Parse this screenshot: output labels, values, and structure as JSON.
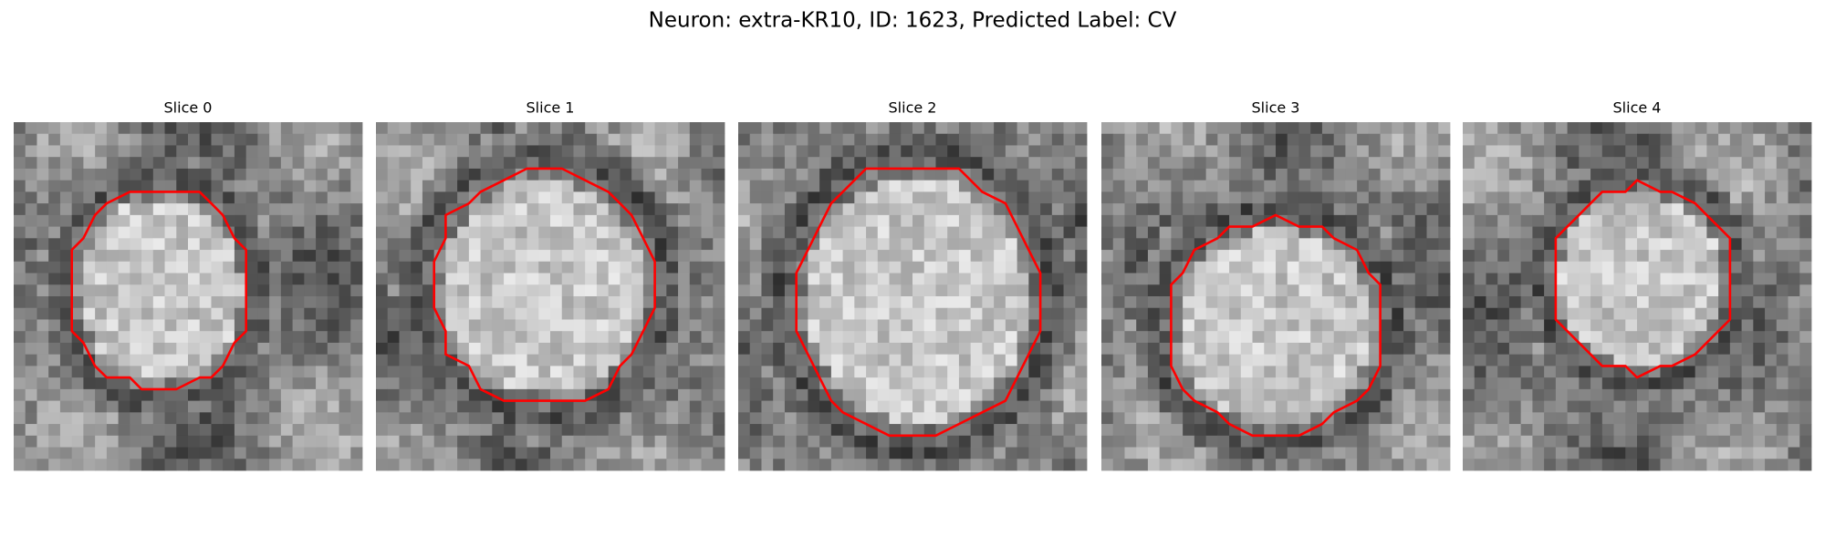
{
  "title": "Neuron: extra-KR10, ID: 1623, Predicted Label: CV",
  "panels": [
    {
      "title": "Slice 0"
    },
    {
      "title": "Slice 1"
    },
    {
      "title": "Slice 2"
    },
    {
      "title": "Slice 3"
    },
    {
      "title": "Slice 4"
    }
  ]
}
